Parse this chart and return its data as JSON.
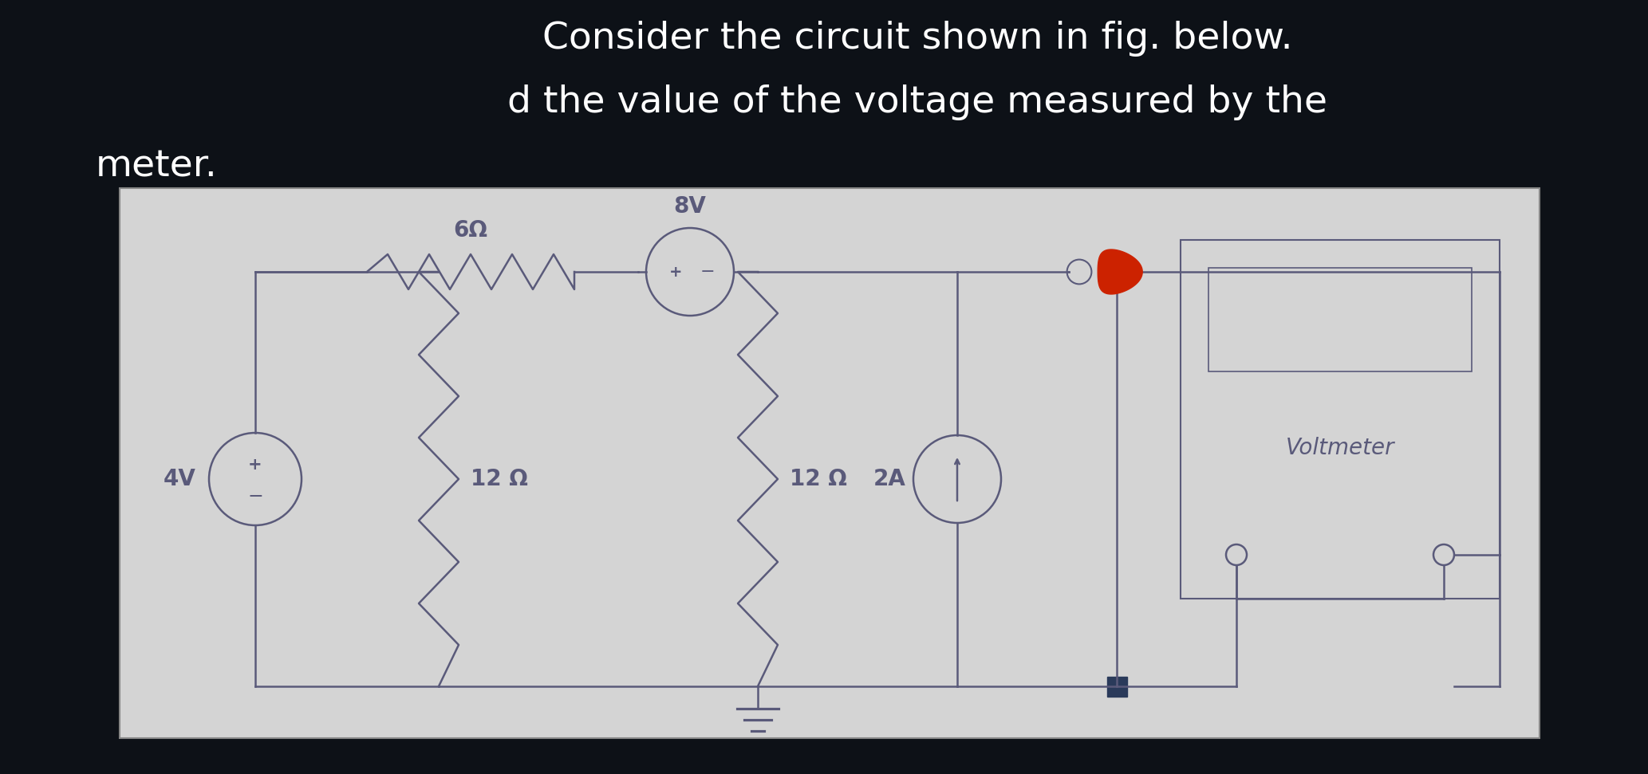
{
  "title_line1": "Consider the circuit shown in fig. below.",
  "title_line2": "d the value of the voltage measured by the",
  "title_line3": "meter.",
  "title_color": "#ffffff",
  "bg_color": "#0d1117",
  "circuit_bg": "#d4d4d4",
  "circuit_border": "#888888",
  "wire_color": "#5a5a7a",
  "component_color": "#5a5a7a",
  "led_color": "#cc2200",
  "dark_node_color": "#2a3a5a",
  "title_fontsize": 34,
  "label_fontsize": 20
}
